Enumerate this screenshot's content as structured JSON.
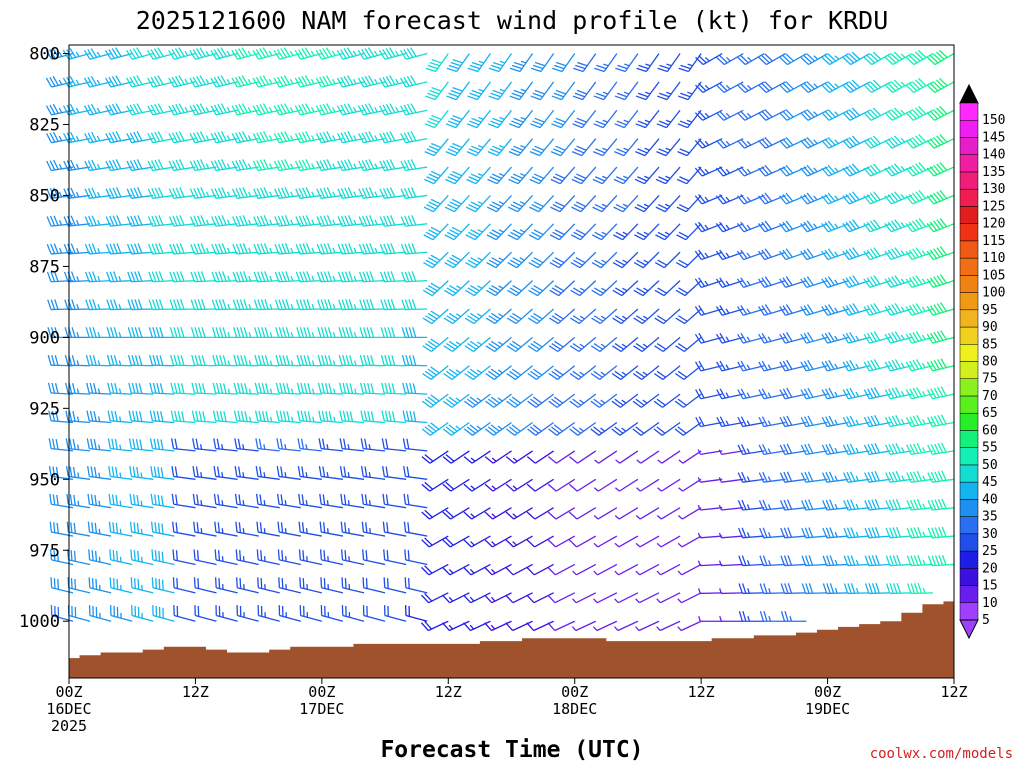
{
  "chart_data": {
    "type": "wind-barb-profile",
    "title": "2025121600 NAM forecast wind profile (kt) for KRDU",
    "xlabel": "Forecast Time (UTC)",
    "credit": "coolwx.com/models",
    "x_ticks": [
      {
        "hour": 0,
        "line1": "00Z",
        "line2": "16DEC",
        "line3": "2025"
      },
      {
        "hour": 12,
        "line1": "12Z",
        "line2": "",
        "line3": ""
      },
      {
        "hour": 24,
        "line1": "00Z",
        "line2": "17DEC",
        "line3": ""
      },
      {
        "hour": 36,
        "line1": "12Z",
        "line2": "",
        "line3": ""
      },
      {
        "hour": 48,
        "line1": "00Z",
        "line2": "18DEC",
        "line3": ""
      },
      {
        "hour": 60,
        "line1": "12Z",
        "line2": "",
        "line3": ""
      },
      {
        "hour": 72,
        "line1": "00Z",
        "line2": "19DEC",
        "line3": ""
      },
      {
        "hour": 84,
        "line1": "12Z",
        "line2": "",
        "line3": ""
      }
    ],
    "xlim_hours": [
      0,
      84
    ],
    "y_ticks": [
      800,
      825,
      850,
      875,
      900,
      925,
      950,
      975,
      1000
    ],
    "ylim_hpa": [
      1020,
      797
    ],
    "levels_hpa": [
      800,
      810,
      820,
      830,
      840,
      850,
      860,
      870,
      880,
      890,
      900,
      910,
      920,
      930,
      940,
      950,
      960,
      970,
      980,
      990,
      1000,
      1010
    ],
    "forecast_hours": [
      0,
      2,
      4,
      6,
      8,
      10,
      12,
      14,
      16,
      18,
      20,
      22,
      24,
      26,
      28,
      30,
      32,
      34,
      36,
      38,
      40,
      42,
      44,
      46,
      48,
      50,
      52,
      54,
      56,
      58,
      60,
      62,
      64,
      66,
      68,
      70,
      72,
      74,
      76,
      78,
      80,
      82,
      84
    ],
    "surface_pressure_hpa": [
      1013,
      1012,
      1011,
      1011,
      1010,
      1009,
      1009,
      1010,
      1011,
      1011,
      1010,
      1009,
      1009,
      1009,
      1008,
      1008,
      1008,
      1008,
      1008,
      1008,
      1007,
      1007,
      1006,
      1006,
      1006,
      1006,
      1007,
      1007,
      1007,
      1007,
      1007,
      1006,
      1006,
      1005,
      1005,
      1004,
      1003,
      1002,
      1001,
      1000,
      997,
      994,
      993
    ],
    "colorbar": {
      "values": [
        5,
        10,
        15,
        20,
        25,
        30,
        35,
        40,
        45,
        50,
        55,
        60,
        65,
        70,
        75,
        80,
        85,
        90,
        95,
        100,
        105,
        110,
        115,
        120,
        125,
        130,
        135,
        140,
        145,
        150
      ],
      "colors": [
        "#a040ff",
        "#6a1eee",
        "#3c10e0",
        "#1e1ee8",
        "#1f4ee8",
        "#2a6ff0",
        "#1e90f0",
        "#14b4f0",
        "#14dcd2",
        "#14f0b4",
        "#14f07a",
        "#28ee28",
        "#5af01e",
        "#8cf01e",
        "#d2f01e",
        "#f0f01e",
        "#f0d21e",
        "#f0b41e",
        "#f09a14",
        "#f08214",
        "#f06e14",
        "#f05a14",
        "#f03214",
        "#e01e1e",
        "#f01e50",
        "#f01e78",
        "#f01ea0",
        "#e61ec8",
        "#f01ef0",
        "#ff28ff"
      ]
    }
  }
}
